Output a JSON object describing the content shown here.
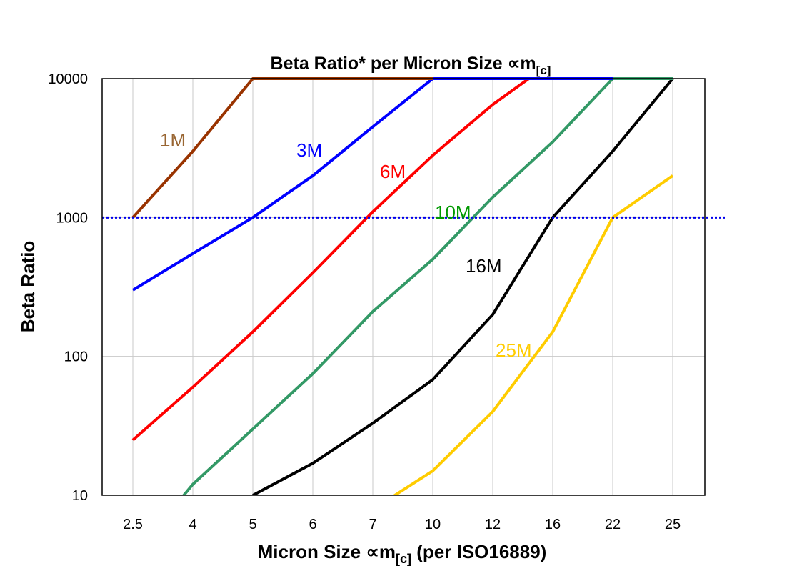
{
  "chart_data": {
    "type": "line",
    "title": "Beta Ratio* per Micron Size ∝m[c]",
    "title_main": "Beta Ratio* per Micron Size ∝m",
    "title_sub": "[c]",
    "xlabel_main": "Micron Size ∝m",
    "xlabel_sub": "[c]",
    "xlabel_tail": " (per ISO16889)",
    "ylabel": "Beta Ratio",
    "categories": [
      "2.5",
      "4",
      "5",
      "6",
      "7",
      "10",
      "12",
      "16",
      "22",
      "25"
    ],
    "y_scale": "log",
    "ylim": [
      10,
      10000
    ],
    "y_ticks": [
      "10",
      "100",
      "1000",
      "10000"
    ],
    "grid": true,
    "reference_line": {
      "value": 1000,
      "style": "dotted",
      "color": "#0000ee"
    },
    "series": [
      {
        "name": "25M",
        "color": "#ffcc00",
        "values": [
          null,
          null,
          null,
          null,
          7.9,
          15,
          40,
          150,
          1000,
          2000
        ]
      },
      {
        "name": "16M",
        "color": "#000000",
        "values": [
          null,
          null,
          10,
          17,
          33,
          68,
          200,
          1000,
          3000,
          10000
        ]
      },
      {
        "name": "10M",
        "color": "#339966",
        "label_color": "#009900",
        "values": [
          3.6,
          12,
          30,
          75,
          210,
          500,
          1400,
          3500,
          10000,
          10000
        ]
      },
      {
        "name": "6M",
        "color": "#ff0000",
        "values": [
          25,
          60,
          150,
          400,
          1100,
          2800,
          6500,
          13300,
          null,
          null
        ]
      },
      {
        "name": "3M",
        "color": "#0000ff",
        "values": [
          300,
          550,
          1000,
          2000,
          4500,
          10000,
          10000,
          10000,
          10000,
          null
        ]
      },
      {
        "name": "1M",
        "color": "#993300",
        "label_color": "#996633",
        "values": [
          1000,
          3000,
          10000,
          10000,
          10000,
          10000,
          null,
          null,
          null,
          null
        ]
      }
    ]
  }
}
